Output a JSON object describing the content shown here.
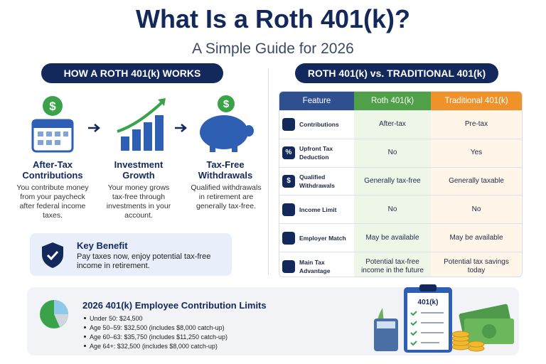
{
  "header": {
    "title": "What Is a Roth 401(k)?",
    "subtitle": "A Simple Guide for 2026"
  },
  "icons": {
    "dollar": "$",
    "percent": "%"
  },
  "how_it_works": {
    "heading": "HOW A ROTH 401(k) WORKS",
    "steps": [
      {
        "title": "After-Tax Contributions",
        "text": "You contribute money from your paycheck after federal income taxes."
      },
      {
        "title": "Investment Growth",
        "text": "Your money grows tax-free through investments in your account."
      },
      {
        "title": "Tax-Free Withdrawals",
        "text": "Qualified withdrawals in retirement are generally tax-free."
      }
    ]
  },
  "key_benefit": {
    "title": "Key Benefit",
    "text": "Pay taxes now, enjoy potential tax-free income in retirement."
  },
  "comparison": {
    "heading": "ROTH 401(k) vs. TRADITIONAL 401(k)",
    "columns": [
      "Feature",
      "Roth 401(k)",
      "Traditional 401(k)"
    ],
    "rows": [
      [
        "Contributions",
        "After-tax",
        "Pre-tax"
      ],
      [
        "Upfront Tax Deduction",
        "No",
        "Yes"
      ],
      [
        "Qualified Withdrawals",
        "Generally tax-free",
        "Generally taxable"
      ],
      [
        "Income Limit",
        "No",
        "No"
      ],
      [
        "Employer Match",
        "May be available",
        "May be available"
      ],
      [
        "Main Tax Advantage",
        "Potential tax-free income in the future",
        "Potential tax savings today"
      ]
    ]
  },
  "limits": {
    "title": "2026 401(k) Employee Contribution Limits",
    "items": [
      "Under 50: $24,500",
      "Age 50–59: $32,500 (includes $8,000 catch-up)",
      "Age 60–63: $35,750 (includes $11,250 catch-up)",
      "Age 64+: $32,500 (includes $8,000 catch-up)"
    ],
    "clipboard_label": "401(k)"
  }
}
